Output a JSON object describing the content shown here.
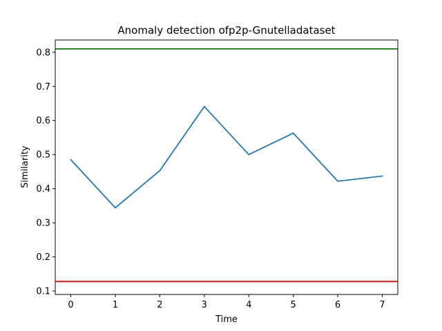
{
  "chart_data": {
    "type": "line",
    "title": "Anomaly detection ofp2p-Gnutelladataset",
    "xlabel": "Time",
    "ylabel": "Similarity",
    "x": [
      0,
      1,
      2,
      3,
      4,
      5,
      6,
      7
    ],
    "xticks": [
      0,
      1,
      2,
      3,
      4,
      5,
      6,
      7
    ],
    "yticks": [
      0.1,
      0.2,
      0.3,
      0.4,
      0.5,
      0.6,
      0.7,
      0.8
    ],
    "xlim": [
      -0.35,
      7.35
    ],
    "ylim": [
      0.09,
      0.836
    ],
    "grid": false,
    "series": [
      {
        "values": [
          0.485,
          0.344,
          0.453,
          0.641,
          0.5,
          0.563,
          0.422,
          0.437
        ],
        "color": "#1f77b4"
      }
    ],
    "hlines": [
      {
        "y": 0.81,
        "color": "#008000"
      },
      {
        "y": 0.128,
        "color": "#ff0000"
      }
    ]
  }
}
